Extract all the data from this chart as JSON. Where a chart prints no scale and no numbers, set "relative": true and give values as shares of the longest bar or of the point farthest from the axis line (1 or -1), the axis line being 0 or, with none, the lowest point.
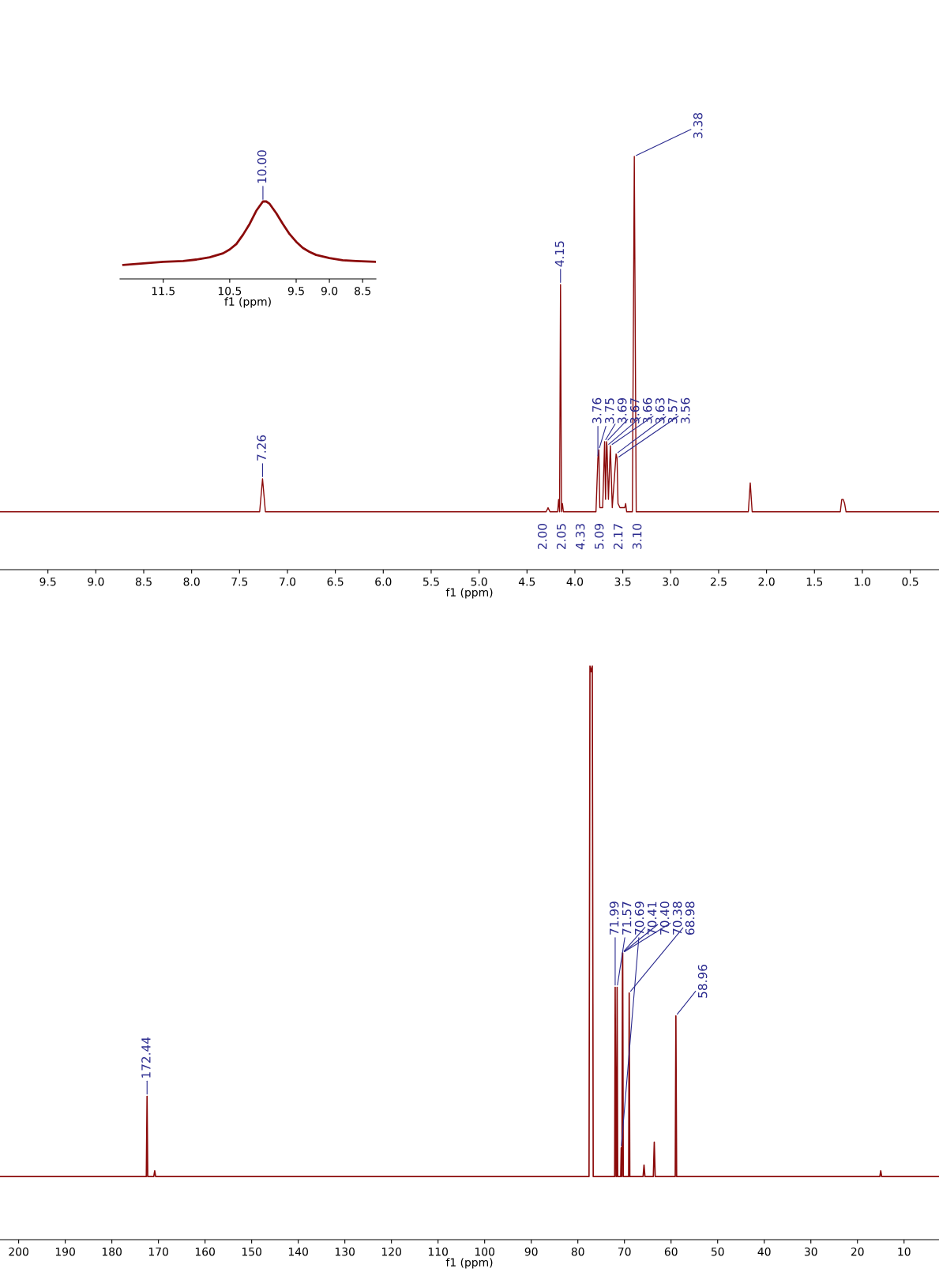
{
  "chart_data": [
    {
      "type": "line",
      "relative": true,
      "xlabel": "f1 (ppm)",
      "tick_labels": "x",
      "xlim": [
        10.0,
        0.2
      ],
      "xticks": [
        9.5,
        {
          "value": 9,
          "label": "9.0"
        },
        8.5,
        {
          "value": 8,
          "label": "8.0"
        },
        7.5,
        {
          "value": 7,
          "label": "7.0"
        },
        6.5,
        {
          "value": 6,
          "label": "6.0"
        },
        5.5,
        {
          "value": 5,
          "label": "5.0"
        },
        4.5,
        {
          "value": 4,
          "label": "4.0"
        },
        3.5,
        {
          "value": 3,
          "label": "3.0"
        },
        2.5,
        {
          "value": 2,
          "label": "2.0"
        },
        1.5,
        {
          "value": 1,
          "label": "1.0"
        },
        0.5
      ],
      "series": [
        {
          "color": "#8b0a0a",
          "x": [
            10.0,
            7.29,
            7.26,
            7.23,
            4.3,
            4.28,
            4.26,
            4.18,
            4.17,
            4.16,
            4.15,
            4.14,
            4.13,
            4.12,
            3.78,
            3.76,
            3.75,
            3.74,
            3.71,
            3.69,
            3.68,
            3.67,
            3.665,
            3.65,
            3.63,
            3.61,
            3.57,
            3.56,
            3.55,
            3.53,
            3.48,
            3.47,
            3.46,
            3.4,
            3.38,
            3.36,
            2.19,
            2.17,
            2.15,
            1.23,
            1.215,
            1.2,
            1.185,
            1.17,
            0.2
          ],
          "values": [
            0.14,
            0.14,
            0.22,
            0.14,
            0.14,
            0.15,
            0.14,
            0.14,
            0.17,
            0.14,
            0.69,
            0.14,
            0.16,
            0.14,
            0.14,
            0.27,
            0.29,
            0.15,
            0.15,
            0.31,
            0.17,
            0.31,
            0.3,
            0.17,
            0.3,
            0.15,
            0.28,
            0.27,
            0.16,
            0.15,
            0.15,
            0.16,
            0.14,
            0.14,
            1.0,
            0.14,
            0.14,
            0.21,
            0.14,
            0.14,
            0.17,
            0.17,
            0.16,
            0.14,
            0.14
          ]
        }
      ],
      "annotations": [
        {
          "text": "7.26",
          "x": 7.26,
          "y": 0.22
        },
        {
          "text": "4.15",
          "x": 4.15,
          "y": 0.69
        },
        {
          "text": "3.76",
          "x": 3.76,
          "y": 0.27
        },
        {
          "text": "3.75",
          "x": 3.75,
          "y": 0.29
        },
        {
          "text": "3.69",
          "x": 3.69,
          "y": 0.31
        },
        {
          "text": "3.67",
          "x": 3.67,
          "y": 0.31
        },
        {
          "text": "3.66",
          "x": 3.665,
          "y": 0.3
        },
        {
          "text": "3.63",
          "x": 3.63,
          "y": 0.3
        },
        {
          "text": "3.57",
          "x": 3.57,
          "y": 0.28
        },
        {
          "text": "3.56",
          "x": 3.56,
          "y": 0.27
        },
        {
          "text": "3.38",
          "x": 3.38,
          "y": 1.0
        },
        "2.00",
        "2.05",
        "4.33",
        "5.09",
        "2.17",
        "3.10"
      ]
    },
    {
      "type": "line",
      "relative": true,
      "xlabel": "f1 (ppm)",
      "tick_labels": "x",
      "xlim": [
        12.15,
        8.3
      ],
      "xticks": [
        11.5,
        10.5,
        9.5,
        {
          "value": 9,
          "label": "9.0"
        },
        8.5
      ],
      "series": [
        {
          "color": "#8b0a0a",
          "x": [
            12.1,
            11.8,
            11.5,
            11.2,
            11.0,
            10.8,
            10.6,
            10.5,
            10.4,
            10.3,
            10.2,
            10.1,
            10.0,
            9.95,
            9.9,
            9.8,
            9.7,
            9.6,
            9.5,
            9.4,
            9.3,
            9.2,
            9.0,
            8.8,
            8.6,
            8.3
          ],
          "values": [
            0.18,
            0.2,
            0.22,
            0.23,
            0.25,
            0.28,
            0.33,
            0.38,
            0.45,
            0.57,
            0.71,
            0.88,
            1.0,
            1.0,
            0.97,
            0.85,
            0.71,
            0.58,
            0.48,
            0.4,
            0.35,
            0.31,
            0.27,
            0.24,
            0.23,
            0.22
          ]
        }
      ],
      "annotations": [
        {
          "text": "10.00",
          "x": 10.0,
          "y": 1.0
        }
      ]
    },
    {
      "type": "line",
      "relative": true,
      "xlabel": "f1 (ppm)",
      "tick_labels": "x",
      "xlim": [
        204,
        2.5
      ],
      "xticks": [
        200,
        190,
        180,
        170,
        160,
        150,
        140,
        130,
        120,
        110,
        100,
        90,
        80,
        70,
        60,
        50,
        40,
        30,
        20,
        10
      ],
      "series": [
        {
          "color": "#8b0a0a",
          "x": [
            204,
            172.6,
            172.44,
            172.3,
            171.0,
            170.8,
            170.6,
            77.6,
            77.4,
            77.16,
            76.9,
            76.7,
            72.1,
            71.99,
            71.8,
            71.7,
            71.57,
            71.45,
            70.8,
            70.69,
            70.55,
            70.41,
            70.4,
            70.38,
            70.25,
            69.1,
            68.98,
            68.85,
            66.0,
            65.8,
            65.6,
            63.8,
            63.6,
            63.4,
            59.1,
            58.96,
            58.8,
            15.2,
            15.0,
            14.8,
            2.5
          ],
          "values": [
            0.11,
            0.11,
            0.25,
            0.11,
            0.11,
            0.12,
            0.11,
            0.11,
            1.0,
            0.99,
            1.0,
            0.11,
            0.11,
            0.44,
            0.11,
            0.11,
            0.44,
            0.11,
            0.11,
            0.16,
            0.11,
            0.5,
            0.5,
            0.5,
            0.11,
            0.11,
            0.43,
            0.11,
            0.11,
            0.13,
            0.11,
            0.11,
            0.17,
            0.11,
            0.11,
            0.39,
            0.11,
            0.11,
            0.12,
            0.11,
            0.11
          ]
        }
      ],
      "annotations": [
        {
          "text": "172.44",
          "x": 172.44,
          "y": 0.25
        },
        {
          "text": "71.99",
          "x": 71.99,
          "y": 0.44
        },
        {
          "text": "71.57",
          "x": 71.57,
          "y": 0.44
        },
        {
          "text": "70.69",
          "x": 70.69,
          "y": 0.16
        },
        {
          "text": "70.41",
          "x": 70.41,
          "y": 0.5
        },
        {
          "text": "70.40",
          "x": 70.4,
          "y": 0.5
        },
        {
          "text": "70.38",
          "x": 70.38,
          "y": 0.5
        },
        {
          "text": "68.98",
          "x": 68.98,
          "y": 0.43
        },
        {
          "text": "58.96",
          "x": 58.96,
          "y": 0.39
        }
      ]
    }
  ]
}
